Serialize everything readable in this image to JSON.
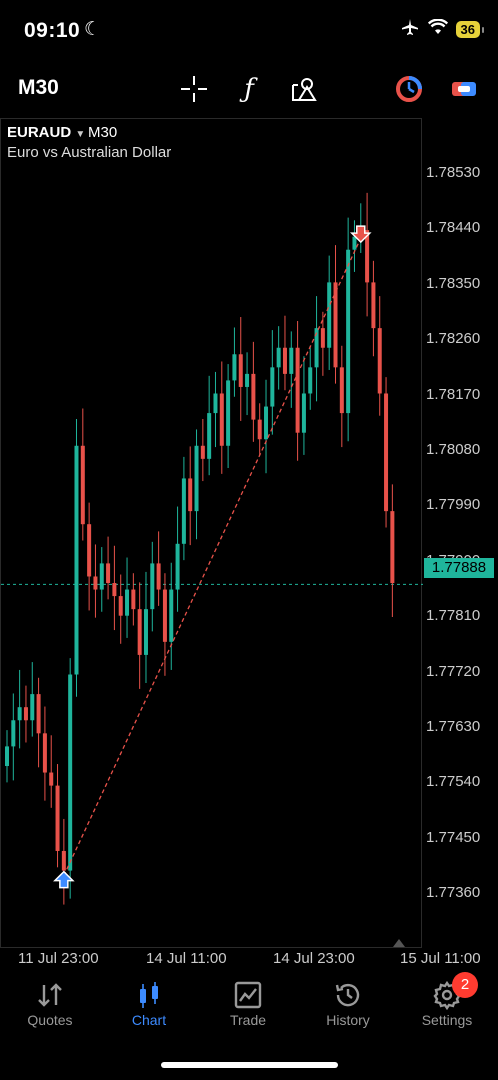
{
  "status_bar": {
    "time": "09:10",
    "battery": "36"
  },
  "toolbar": {
    "timeframe": "M30"
  },
  "chart": {
    "symbol": "EURAUD",
    "timeframe": "M30",
    "description": "Euro vs Australian Dollar",
    "current_price": "1.77888",
    "price_labels": [
      "1.78530",
      "1.78440",
      "1.78350",
      "1.78260",
      "1.78170",
      "1.78080",
      "1.77990",
      "1.77900",
      "1.77810",
      "1.77720",
      "1.77630",
      "1.77540",
      "1.77450",
      "1.77360"
    ],
    "time_labels": [
      "11 Jul 23:00",
      "14 Jul 11:00",
      "14 Jul 23:00",
      "15 Jul 11:00"
    ],
    "colors": {
      "bull": "#1fb59c",
      "bear": "#e8524a",
      "buy_arrow": "#3d8bff",
      "sell_arrow": "#e8524a"
    }
  },
  "chart_data": {
    "type": "candlestick",
    "series_close": [
      1.7764,
      1.7768,
      1.777,
      1.7768,
      1.7772,
      1.7766,
      1.776,
      1.7758,
      1.7748,
      1.7745,
      1.7775,
      1.781,
      1.7798,
      1.779,
      1.7788,
      1.7792,
      1.7789,
      1.7787,
      1.7784,
      1.7788,
      1.7785,
      1.7778,
      1.7785,
      1.7792,
      1.7788,
      1.778,
      1.7788,
      1.7795,
      1.7805,
      1.78,
      1.781,
      1.7808,
      1.7815,
      1.7818,
      1.781,
      1.782,
      1.7824,
      1.7819,
      1.7821,
      1.7814,
      1.7811,
      1.7816,
      1.7822,
      1.7825,
      1.7821,
      1.7825,
      1.7812,
      1.7818,
      1.7822,
      1.7828,
      1.7825,
      1.7835,
      1.7822,
      1.7815,
      1.784,
      1.7842,
      1.7843,
      1.7835,
      1.7828,
      1.7818,
      1.78,
      1.7789
    ],
    "ylim": [
      1.7733,
      1.786
    ],
    "x_ticks": [
      "11 Jul 23:00",
      "14 Jul 11:00",
      "14 Jul 23:00",
      "15 Jul 11:00"
    ],
    "trade": {
      "buy_price": 1.7743,
      "sell_price": 1.7843
    }
  },
  "tabs": [
    {
      "label": "Quotes",
      "icon": "quotes-arrows-icon"
    },
    {
      "label": "Chart",
      "icon": "candles-icon"
    },
    {
      "label": "Trade",
      "icon": "trade-chart-icon"
    },
    {
      "label": "History",
      "icon": "history-clock-icon"
    },
    {
      "label": "Settings",
      "icon": "gear-icon"
    }
  ],
  "settings_badge": "2"
}
